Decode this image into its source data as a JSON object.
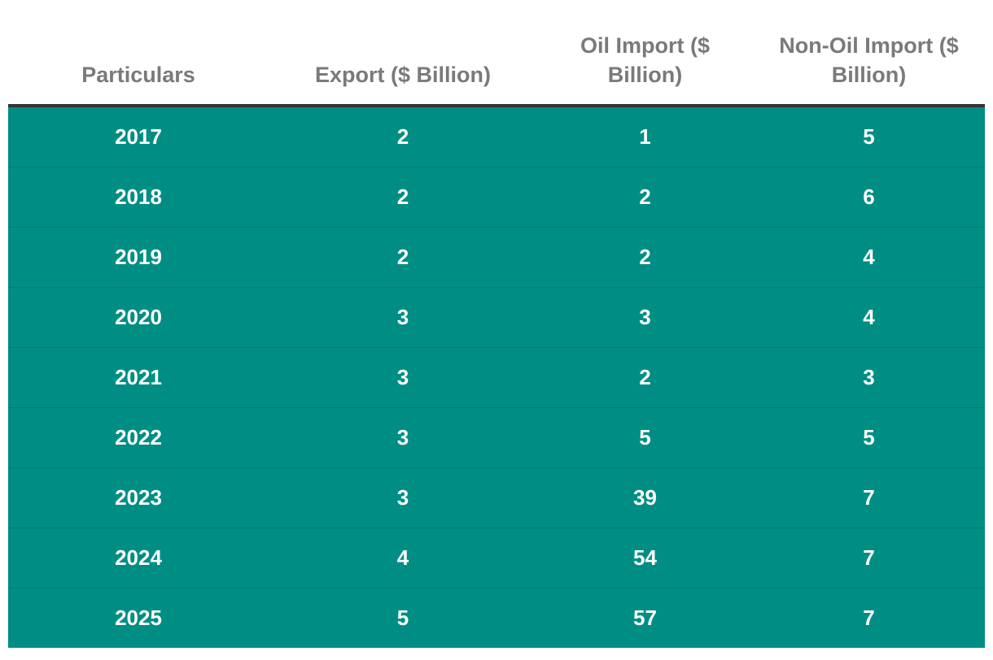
{
  "chart_data": {
    "type": "table",
    "columns": [
      "Particulars",
      "Export ($ Billion)",
      "Oil Import ($ Billion)",
      "Non-Oil Import ($ Billion)"
    ],
    "rows": [
      [
        "2017",
        "2",
        "1",
        "5"
      ],
      [
        "2018",
        "2",
        "2",
        "6"
      ],
      [
        "2019",
        "2",
        "2",
        "4"
      ],
      [
        "2020",
        "3",
        "3",
        "4"
      ],
      [
        "2021",
        "3",
        "2",
        "3"
      ],
      [
        "2022",
        "3",
        "5",
        "5"
      ],
      [
        "2023",
        "3",
        "39",
        "7"
      ],
      [
        "2024",
        "4",
        "54",
        "7"
      ],
      [
        "2025",
        "5",
        "57",
        "7"
      ]
    ],
    "colors": {
      "row_background": "#008e84",
      "header_text": "#7a7a7a",
      "header_rule": "#333333",
      "cell_text": "#ffffff"
    }
  }
}
